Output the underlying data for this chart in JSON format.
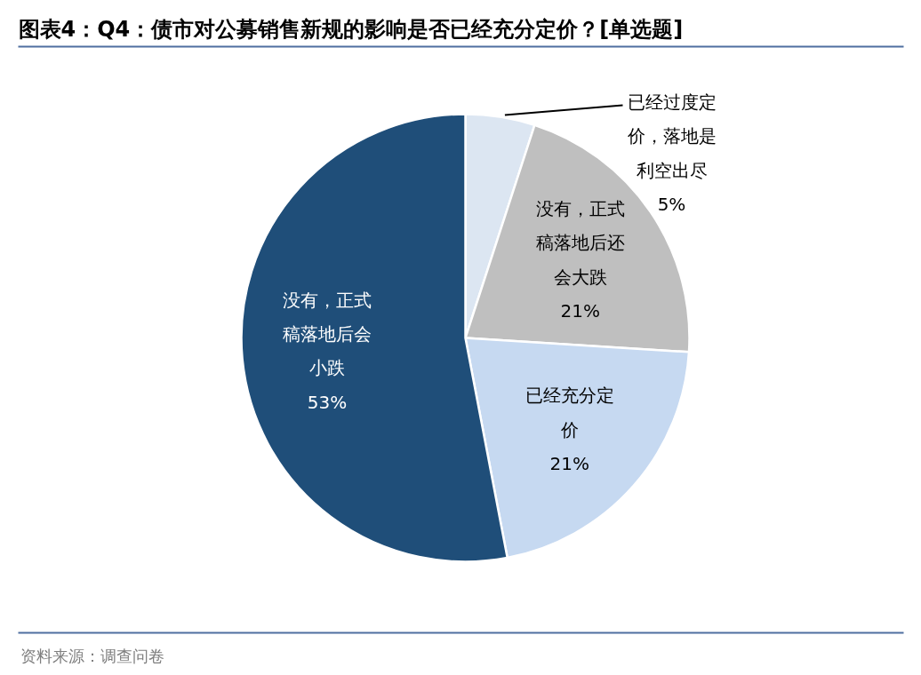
{
  "chart_data": {
    "type": "pie",
    "title": "图表4：Q4：债市对公募销售新规的影响是否已经充分定价？[单选题]",
    "categories": [
      "已经过度定价，落地是利空出尽",
      "没有，正式稿落地后还会大跌",
      "已经充分定价",
      "没有，正式稿落地后会小跌"
    ],
    "values": [
      5,
      21,
      21,
      53
    ],
    "colors": [
      "#dce6f2",
      "#bfbfbf",
      "#c6d9f1",
      "#1f4e79"
    ],
    "value_labels": [
      "5%",
      "21%",
      "21%",
      "53%"
    ],
    "annotations": [
      "资料来源：调查问卷"
    ]
  }
}
